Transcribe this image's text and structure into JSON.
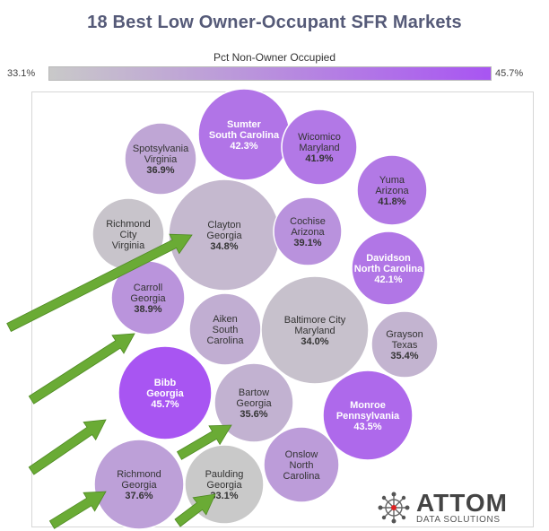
{
  "title": "18 Best Low Owner-Occupant SFR Markets",
  "legend": {
    "title": "Pct Non-Owner Occupied",
    "min_label": "33.1%",
    "max_label": "45.7%",
    "color_low": "#c9c9c9",
    "color_high": "#a855f2"
  },
  "logo": {
    "name": "ATTOM",
    "sub": "DATA SOLUTIONS",
    "registered": "®"
  },
  "chart_data": {
    "type": "bubble",
    "color_measure": "Pct Non-Owner Occupied",
    "color_range": [
      33.1,
      45.7
    ],
    "points": [
      {
        "county": "Sumter",
        "state": "South Carolina",
        "pct": 42.3,
        "label": "42.3%",
        "highlight": false
      },
      {
        "county": "Spotsylvania",
        "state": "Virginia",
        "pct": 36.9,
        "label": "36.9%",
        "highlight": false
      },
      {
        "county": "Wicomico",
        "state": "Maryland",
        "pct": 41.9,
        "label": "41.9%",
        "highlight": false
      },
      {
        "county": "Yuma",
        "state": "Arizona",
        "pct": 41.8,
        "label": "41.8%",
        "highlight": false
      },
      {
        "county": "Richmond City",
        "state": "Virginia",
        "pct": 33.6,
        "label": "",
        "highlight": false
      },
      {
        "county": "Clayton",
        "state": "Georgia",
        "pct": 34.8,
        "label": "34.8%",
        "highlight": true
      },
      {
        "county": "Cochise",
        "state": "Arizona",
        "pct": 39.1,
        "label": "39.1%",
        "highlight": false
      },
      {
        "county": "Davidson",
        "state": "North Carolina",
        "pct": 42.1,
        "label": "42.1%",
        "highlight": false
      },
      {
        "county": "Carroll",
        "state": "Georgia",
        "pct": 38.9,
        "label": "38.9%",
        "highlight": true
      },
      {
        "county": "Aiken",
        "state": "South Carolina",
        "pct": 36.0,
        "label": "",
        "highlight": false
      },
      {
        "county": "Baltimore City",
        "state": "Maryland",
        "pct": 34.0,
        "label": "34.0%",
        "highlight": false
      },
      {
        "county": "Grayson",
        "state": "Texas",
        "pct": 35.4,
        "label": "35.4%",
        "highlight": false
      },
      {
        "county": "Bibb",
        "state": "Georgia",
        "pct": 45.7,
        "label": "45.7%",
        "highlight": true
      },
      {
        "county": "Bartow",
        "state": "Georgia",
        "pct": 35.6,
        "label": "35.6%",
        "highlight": true
      },
      {
        "county": "Monroe",
        "state": "Pennsylvania",
        "pct": 43.5,
        "label": "43.5%",
        "highlight": false
      },
      {
        "county": "Onslow",
        "state": "North Carolina",
        "pct": 38.0,
        "label": "",
        "highlight": false
      },
      {
        "county": "Richmond",
        "state": "Georgia",
        "pct": 37.6,
        "label": "37.6%",
        "highlight": true
      },
      {
        "county": "Paulding",
        "state": "Georgia",
        "pct": 33.1,
        "label": "33.1%",
        "highlight": true
      }
    ]
  }
}
